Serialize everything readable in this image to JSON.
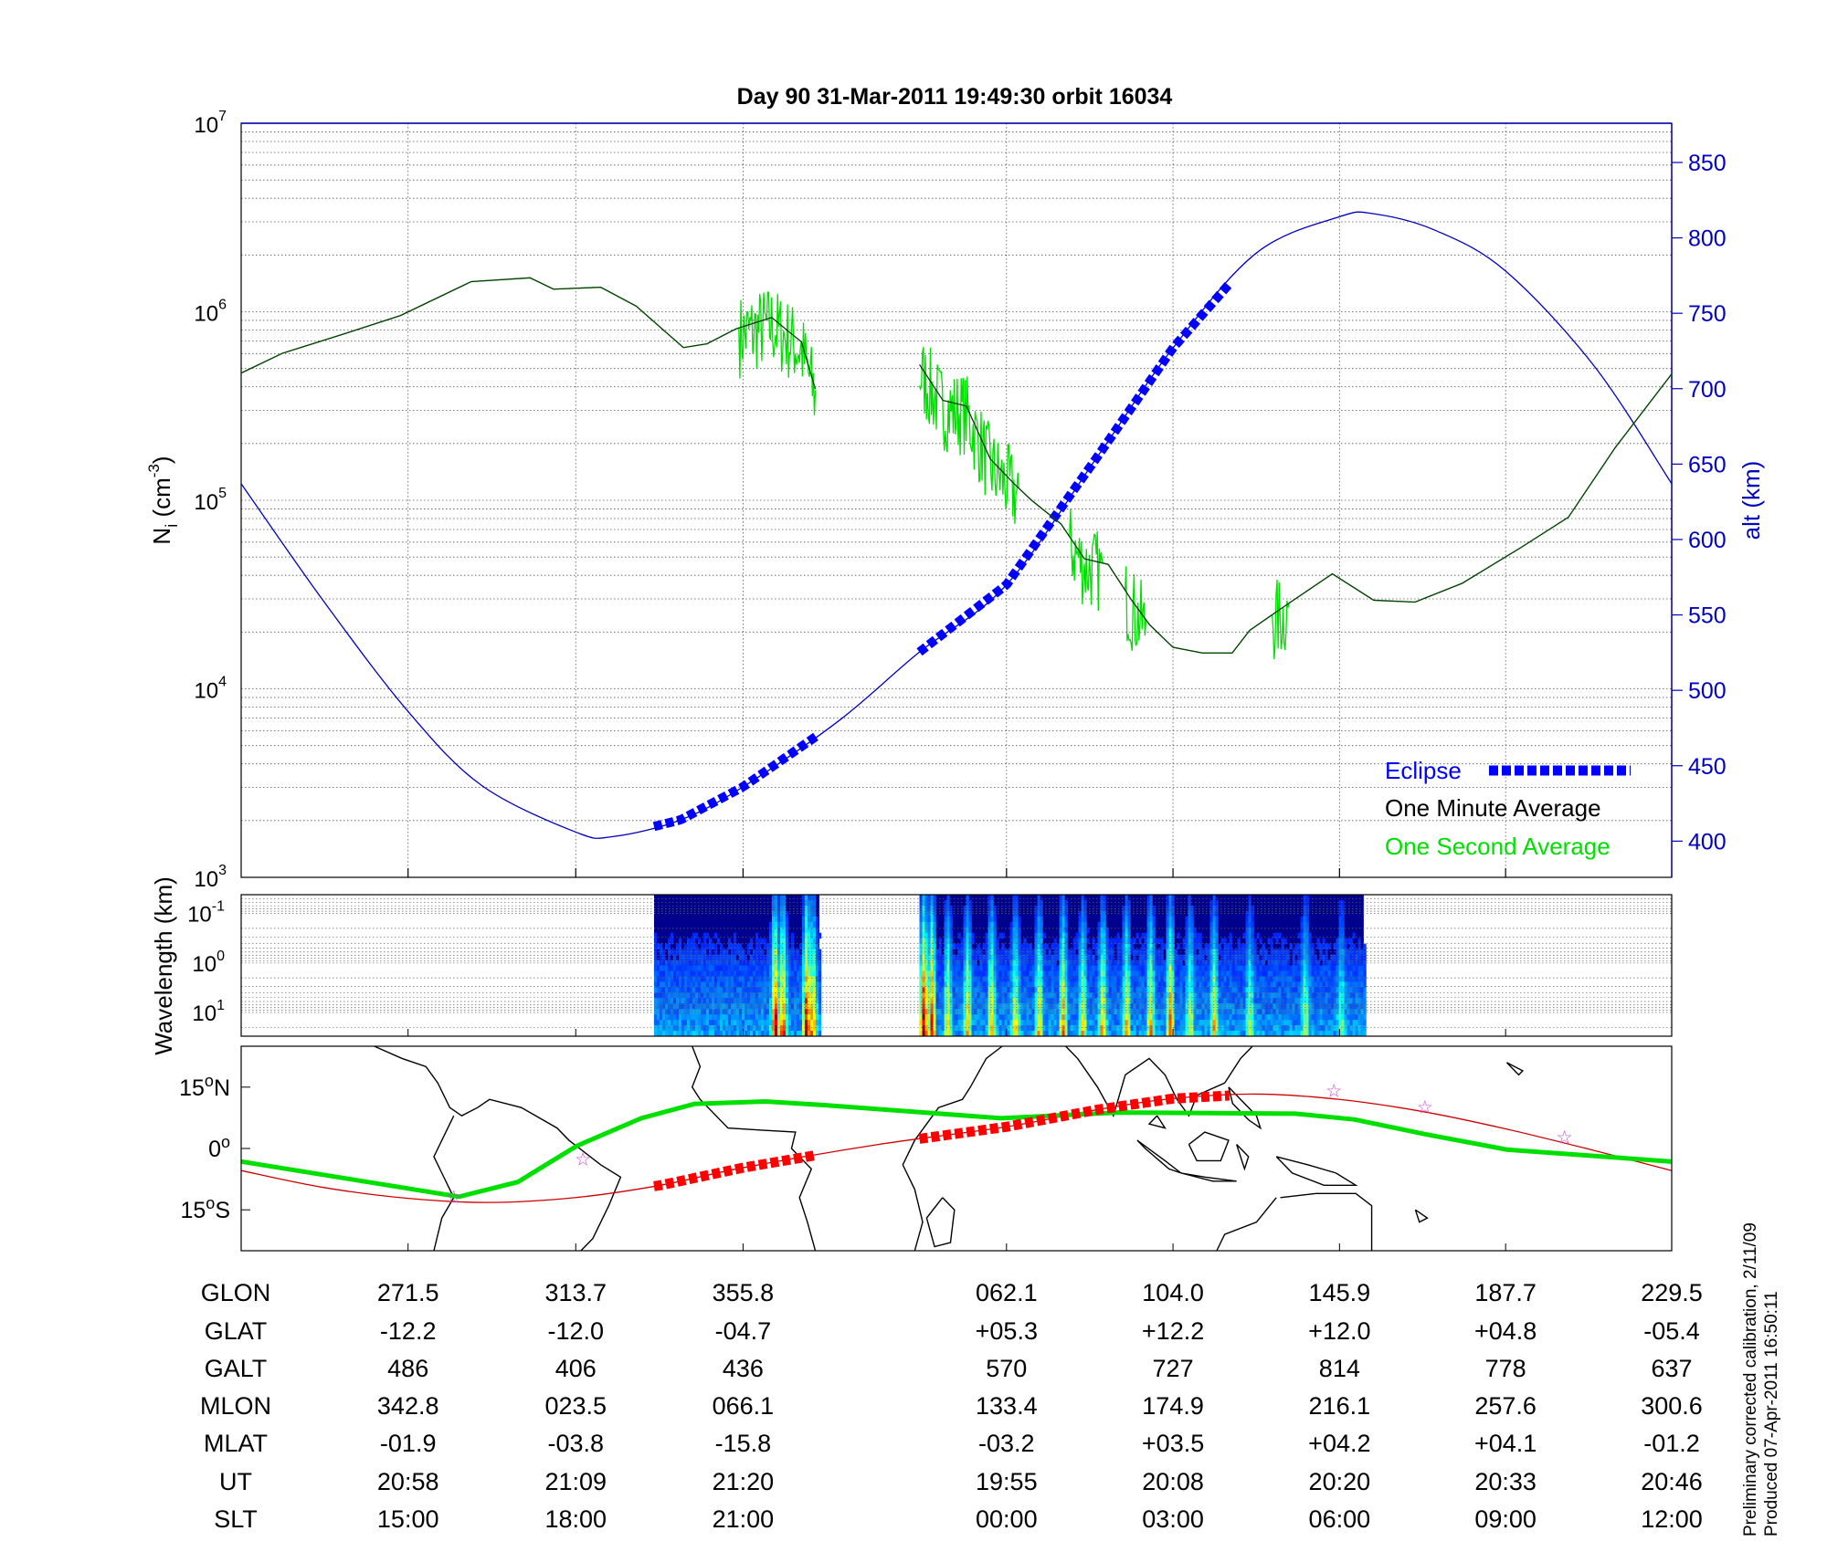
{
  "chart_data": [
    {
      "type": "line",
      "panel": "ion-density-altitude",
      "title": "Day 90  31-Mar-2011 19:49:30   orbit 16034",
      "x_units": "geographic longitude (deg, unwrapped)",
      "xlim": [
        229.5,
        589.5
      ],
      "ylabel_left": "N",
      "ylabel_left_sub": "i",
      "ylabel_left_unit": " (cm",
      "ylabel_left_unit_exp": "-3",
      "ylabel_left_close": ")",
      "ylabel_right": "alt (km)",
      "yscale_left": "log",
      "ylim_left": [
        1000,
        10000000
      ],
      "yticks_left": [
        {
          "base": "10",
          "exp": "3",
          "value": 3
        },
        {
          "base": "10",
          "exp": "4",
          "value": 4
        },
        {
          "base": "10",
          "exp": "5",
          "value": 5
        },
        {
          "base": "10",
          "exp": "6",
          "value": 6
        },
        {
          "base": "10",
          "exp": "7",
          "value": 7
        }
      ],
      "ylim_right": [
        376,
        876
      ],
      "yticks_right": [
        "400",
        "450",
        "500",
        "550",
        "600",
        "650",
        "700",
        "750",
        "800",
        "850"
      ],
      "grid": true,
      "legend_placement": "bottom-right",
      "legend": [
        {
          "label": "Eclipse",
          "color": "#0000ff",
          "style": "thick-dashed"
        },
        {
          "label": "One Minute Average",
          "color": "#000000",
          "style": "line"
        },
        {
          "label": "One Second Average",
          "color": "#00e000",
          "style": "line"
        }
      ],
      "series": [
        {
          "name": "One Minute Average",
          "color": "#0a3a0a",
          "segments": [
            [
              [
                229.5,
                5.675
              ],
              [
                239.9,
                5.78
              ],
              [
                255,
                5.88
              ],
              [
                269.6,
                5.98
              ],
              [
                287.4,
                6.16
              ],
              [
                302.2,
                6.18
              ],
              [
                308.1,
                6.12
              ],
              [
                320,
                6.13
              ],
              [
                328.9,
                6.03
              ],
              [
                340.8,
                5.81
              ],
              [
                346.7,
                5.83
              ],
              [
                354.1,
                5.91
              ],
              [
                363,
                5.97
              ],
              [
                367,
                5.9
              ],
              [
                370.5,
                5.84
              ],
              [
                374,
                5.59
              ]
            ],
            [
              [
                400.2,
                5.72
              ],
              [
                406.1,
                5.53
              ],
              [
                412,
                5.5
              ],
              [
                418,
                5.22
              ],
              [
                423.9,
                5.09
              ],
              [
                428.4,
                5.0
              ],
              [
                435.8,
                4.875
              ],
              [
                441.7,
                4.69
              ],
              [
                447.7,
                4.66
              ],
              [
                453.6,
                4.47
              ],
              [
                458.1,
                4.34
              ],
              [
                464,
                4.22
              ],
              [
                471.4,
                4.19
              ],
              [
                478.9,
                4.19
              ],
              [
                483.3,
                4.31
              ],
              [
                492.2,
                4.44
              ],
              [
                504.1,
                4.61
              ],
              [
                514.5,
                4.47
              ],
              [
                524.9,
                4.46
              ],
              [
                536.8,
                4.56
              ],
              [
                551.6,
                4.75
              ],
              [
                563.5,
                4.91
              ],
              [
                575.3,
                5.28
              ],
              [
                589.5,
                5.67
              ]
            ]
          ],
          "y_encoding": "log10 of density"
        },
        {
          "name": "One Second Average",
          "color": "#00e000",
          "noisy_ranges": [
            [
              355,
              375
            ],
            [
              400,
              425
            ],
            [
              438,
              446
            ],
            [
              452,
              457
            ],
            [
              489,
              493
            ]
          ]
        },
        {
          "name": "alt (km)",
          "color": "#0000c0",
          "axis": "right",
          "points": [
            [
              229.5,
              637
            ],
            [
              250,
              560
            ],
            [
              271.5,
              486
            ],
            [
              290,
              437
            ],
            [
              313.7,
              406
            ],
            [
              323,
              403
            ],
            [
              340,
              414
            ],
            [
              355.8,
              436
            ],
            [
              380,
              480
            ],
            [
              400,
              525
            ],
            [
              422.1,
              570
            ],
            [
              445,
              655
            ],
            [
              464,
              727
            ],
            [
              485,
              790
            ],
            [
              505.9,
              814
            ],
            [
              514.5,
              816
            ],
            [
              530,
              805
            ],
            [
              547.7,
              778
            ],
            [
              570,
              715
            ],
            [
              589.5,
              637
            ]
          ]
        },
        {
          "name": "Eclipse",
          "color": "#0000ff",
          "axis": "right",
          "ranges": [
            [
              333.4,
              375
            ],
            [
              400.2,
              478.9
            ]
          ]
        }
      ],
      "xticks": [
        271.5,
        313.7,
        355.8,
        422.1,
        464.0,
        505.9,
        547.7
      ]
    },
    {
      "type": "heatmap",
      "panel": "spectrogram",
      "ylabel": "Wavelength (km)",
      "yscale": "log",
      "yticks": [
        {
          "base": "10",
          "exp": "-1",
          "value": -1
        },
        {
          "base": "10",
          "exp": "0",
          "value": 0
        },
        {
          "base": "10",
          "exp": "1",
          "value": 1
        }
      ],
      "ylim_log": [
        -1.38,
        1.48
      ],
      "colormap": "jet",
      "data_ranges": [
        [
          333.4,
          375
        ],
        [
          400.2,
          512
        ]
      ],
      "burst_lons": [
        [
          363.5,
          0.95
        ],
        [
          365.5,
          0.8
        ],
        [
          371.5,
          1.0
        ],
        [
          373,
          0.7
        ],
        [
          401,
          1.0
        ],
        [
          403,
          0.85
        ],
        [
          407,
          0.5
        ],
        [
          412,
          0.55
        ],
        [
          418,
          0.6
        ],
        [
          424,
          0.5
        ],
        [
          430,
          0.55
        ],
        [
          436,
          0.65
        ],
        [
          441,
          0.5
        ],
        [
          446,
          0.6
        ],
        [
          452,
          0.55
        ],
        [
          458,
          0.6
        ],
        [
          463,
          0.7
        ],
        [
          468,
          0.45
        ],
        [
          474,
          0.5
        ],
        [
          483,
          0.35
        ],
        [
          497,
          0.4
        ],
        [
          506,
          0.3
        ]
      ]
    },
    {
      "type": "line",
      "panel": "ground-track-map",
      "ylim": [
        -25,
        25
      ],
      "yticks": [
        {
          "deg": "15",
          "hemi": "N",
          "value": 15
        },
        {
          "deg": "0",
          "hemi": "",
          "value": 0
        },
        {
          "deg": "15",
          "hemi": "S",
          "value": -15
        }
      ],
      "series": [
        {
          "name": "magnetic equator",
          "color": "#00e000",
          "points": [
            [
              229.5,
              -3.2
            ],
            [
              257.6,
              -7.6
            ],
            [
              284.3,
              -11.8
            ],
            [
              299.1,
              -8.2
            ],
            [
              313.9,
              0.6
            ],
            [
              330.2,
              7.4
            ],
            [
              343.6,
              10.9
            ],
            [
              361.4,
              11.5
            ],
            [
              376.2,
              10.6
            ],
            [
              420.7,
              7.4
            ],
            [
              450.3,
              8.8
            ],
            [
              494.8,
              8.5
            ],
            [
              509.6,
              7.1
            ],
            [
              527.4,
              3.5
            ],
            [
              548.2,
              -0.3
            ],
            [
              589.5,
              -3.2
            ]
          ]
        },
        {
          "name": "orbit track",
          "color": "#d00000",
          "points": [
            [
              229.5,
              -5.4
            ],
            [
              250,
              -9.5
            ],
            [
              271.5,
              -12.2
            ],
            [
              292,
              -13.2
            ],
            [
              313.7,
              -12.0
            ],
            [
              335,
              -9
            ],
            [
              355.8,
              -4.7
            ],
            [
              390,
              1
            ],
            [
              422.1,
              5.3
            ],
            [
              445,
              9.5
            ],
            [
              464,
              12.2
            ],
            [
              485,
              13.3
            ],
            [
              505.9,
              12.0
            ],
            [
              527,
              9
            ],
            [
              547.7,
              4.8
            ],
            [
              570,
              -0.5
            ],
            [
              589.5,
              -5.4
            ]
          ]
        },
        {
          "name": "eclipse track",
          "color": "#ff0000",
          "ranges": [
            [
              333.4,
              375
            ],
            [
              400.2,
              478.9
            ]
          ]
        }
      ],
      "star_markers": [
        [
          283,
          -11.8
        ],
        [
          315.5,
          -2.6
        ],
        [
          504.5,
          14.2
        ],
        [
          527.4,
          10.2
        ],
        [
          562.5,
          2.8
        ]
      ],
      "coastlines": "schematic"
    }
  ],
  "table": {
    "row_labels": [
      "GLON",
      "GLAT",
      "GALT",
      "MLON",
      "MLAT",
      "UT",
      "SLT"
    ],
    "columns": [
      [
        "271.5",
        "-12.2",
        "486",
        "342.8",
        "-01.9",
        "20:58",
        "15:00"
      ],
      [
        "313.7",
        "-12.0",
        "406",
        "023.5",
        "-03.8",
        "21:09",
        "18:00"
      ],
      [
        "355.8",
        "-04.7",
        "436",
        "066.1",
        "-15.8",
        "21:20",
        "21:00"
      ],
      [
        "062.1",
        "+05.3",
        "570",
        "133.4",
        "-03.2",
        "19:55",
        "00:00"
      ],
      [
        "104.0",
        "+12.2",
        "727",
        "174.9",
        "+03.5",
        "20:08",
        "03:00"
      ],
      [
        "145.9",
        "+12.0",
        "814",
        "216.1",
        "+04.2",
        "20:20",
        "06:00"
      ],
      [
        "187.7",
        "+04.8",
        "778",
        "257.6",
        "+04.1",
        "20:33",
        "09:00"
      ],
      [
        "229.5",
        "-05.4",
        "637",
        "300.6",
        "-01.2",
        "20:46",
        "12:00"
      ]
    ],
    "column_lons": [
      271.5,
      313.7,
      355.8,
      422.1,
      464.0,
      505.9,
      547.7,
      589.5
    ]
  },
  "footer": {
    "line1": "Preliminary corrected calibration, 2/11/09",
    "line2": "Produced 07-Apr-2011 16:50:11"
  }
}
